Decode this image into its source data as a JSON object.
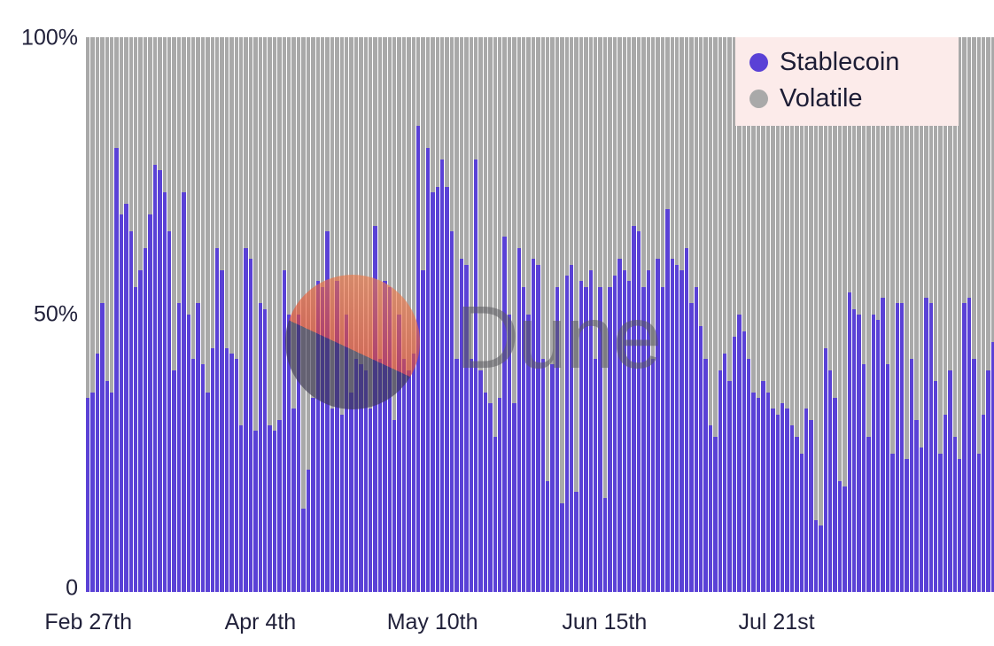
{
  "watermark": {
    "text": "Dune"
  },
  "chart_data": {
    "type": "bar",
    "stacked": true,
    "normalized_to_100_percent": true,
    "title": "",
    "xlabel": "",
    "ylabel": "",
    "ylim": [
      0,
      100
    ],
    "grid": false,
    "y_ticks": [
      "100%",
      "50%",
      "0"
    ],
    "x_tick_labels": [
      "Feb 27th",
      "Apr 4th",
      "May 10th",
      "Jun 15th",
      "Jul 21st"
    ],
    "x_tick_positions": [
      0,
      36,
      72,
      108,
      144
    ],
    "series": [
      {
        "name": "Stablecoin",
        "color": "#5a41d6",
        "values": [
          35,
          36,
          43,
          52,
          38,
          36,
          80,
          68,
          70,
          65,
          55,
          58,
          62,
          68,
          77,
          76,
          72,
          65,
          40,
          52,
          72,
          50,
          42,
          52,
          41,
          36,
          44,
          62,
          58,
          44,
          43,
          42,
          30,
          62,
          60,
          29,
          52,
          51,
          30,
          29,
          31,
          58,
          50,
          33,
          50,
          15,
          22,
          35,
          56,
          55,
          65,
          33,
          56,
          32,
          50,
          36,
          42,
          41,
          40,
          33,
          66,
          42,
          56,
          55,
          31,
          50,
          42,
          40,
          43,
          84,
          58,
          80,
          72,
          73,
          78,
          73,
          65,
          42,
          60,
          59,
          42,
          78,
          40,
          36,
          34,
          28,
          35,
          64,
          50,
          34,
          62,
          55,
          50,
          60,
          59,
          42,
          20,
          41,
          55,
          16,
          57,
          59,
          18,
          56,
          55,
          58,
          42,
          55,
          17,
          55,
          57,
          60,
          58,
          56,
          66,
          65,
          55,
          58,
          42,
          60,
          55,
          69,
          60,
          59,
          58,
          62,
          52,
          55,
          48,
          42,
          30,
          28,
          40,
          43,
          38,
          46,
          50,
          47,
          42,
          36,
          35,
          38,
          36,
          33,
          32,
          34,
          33,
          30,
          28,
          25,
          33,
          31,
          13,
          12,
          44,
          40,
          35,
          20,
          19,
          54,
          51,
          50,
          41,
          28,
          50,
          49,
          53,
          41,
          25,
          52,
          52,
          24,
          42,
          31,
          26,
          53,
          52,
          38,
          25,
          32,
          40,
          28,
          24,
          52,
          53,
          42,
          25,
          32,
          40,
          45
        ]
      },
      {
        "name": "Volatile",
        "color": "#a9a9a9",
        "complement_to_100": true
      }
    ],
    "legend": {
      "position": "top-right",
      "background": "#fcebea",
      "items": [
        {
          "label": "Stablecoin",
          "color": "#5a41d6"
        },
        {
          "label": "Volatile",
          "color": "#a9a9a9"
        }
      ]
    }
  }
}
